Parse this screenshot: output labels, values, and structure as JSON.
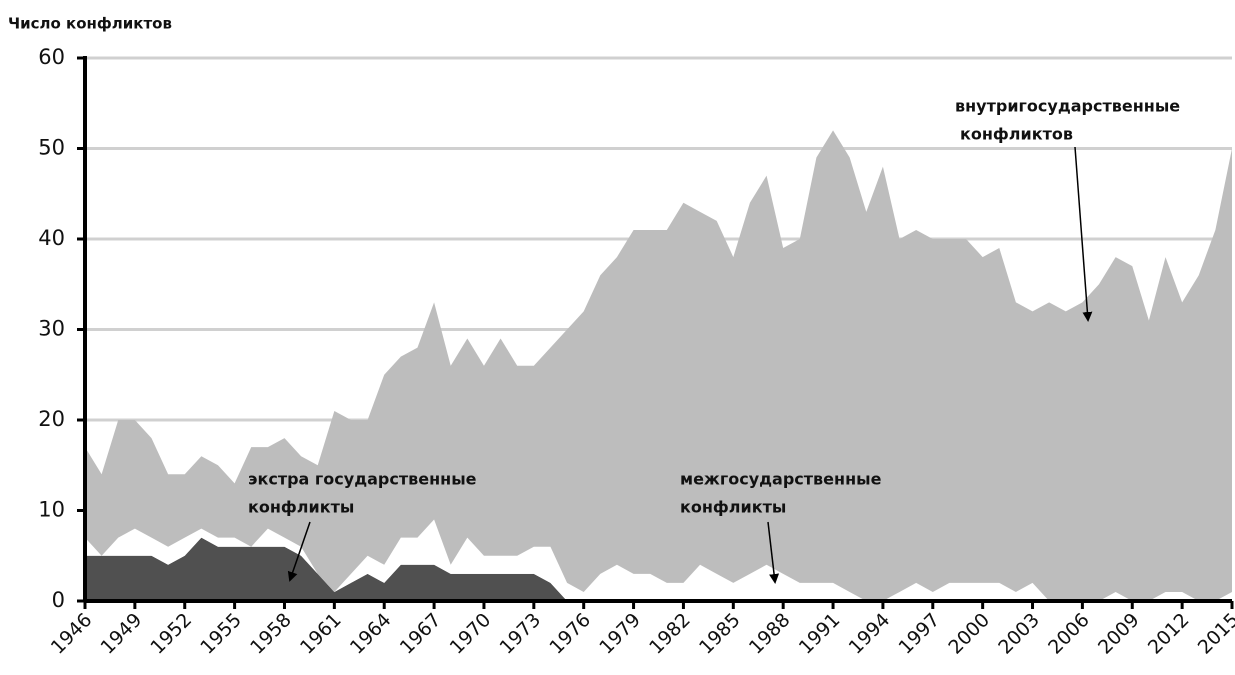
{
  "chart_data": {
    "type": "stacked_area",
    "y_label": "Число конфликтов",
    "x": [
      1946,
      1947,
      1948,
      1949,
      1950,
      1951,
      1952,
      1953,
      1954,
      1955,
      1956,
      1957,
      1958,
      1959,
      1960,
      1961,
      1962,
      1963,
      1964,
      1965,
      1966,
      1967,
      1968,
      1969,
      1970,
      1971,
      1972,
      1973,
      1974,
      1975,
      1976,
      1977,
      1978,
      1979,
      1980,
      1981,
      1982,
      1983,
      1984,
      1985,
      1986,
      1987,
      1988,
      1989,
      1990,
      1991,
      1992,
      1993,
      1994,
      1995,
      1996,
      1997,
      1998,
      1999,
      2000,
      2001,
      2002,
      2003,
      2004,
      2005,
      2006,
      2007,
      2008,
      2009,
      2010,
      2011,
      2012,
      2013,
      2014,
      2015
    ],
    "series": [
      {
        "color": "#505050",
        "values": [
          5,
          5,
          5,
          5,
          5,
          4,
          5,
          7,
          6,
          6,
          6,
          6,
          6,
          5,
          3,
          1,
          2,
          3,
          2,
          4,
          4,
          4,
          3,
          3,
          3,
          3,
          3,
          3,
          2,
          0,
          0,
          0,
          0,
          0,
          0,
          0,
          0,
          0,
          0,
          0,
          0,
          0,
          0,
          0,
          0,
          0,
          0,
          0,
          0,
          0,
          0,
          0,
          0,
          0,
          0,
          0,
          0,
          0,
          0,
          0,
          0,
          0,
          0,
          0,
          0,
          0,
          0,
          0,
          0,
          0
        ]
      },
      {
        "color": "#ffffff",
        "values": [
          2,
          0,
          2,
          3,
          2,
          2,
          2,
          1,
          1,
          1,
          0,
          2,
          1,
          1,
          0,
          0,
          1,
          2,
          2,
          3,
          3,
          5,
          1,
          4,
          2,
          2,
          2,
          3,
          4,
          2,
          1,
          3,
          4,
          3,
          3,
          2,
          2,
          4,
          3,
          2,
          3,
          4,
          3,
          2,
          2,
          2,
          1,
          0,
          0,
          1,
          2,
          1,
          2,
          2,
          2,
          2,
          1,
          2,
          0,
          0,
          0,
          0,
          1,
          0,
          0,
          1,
          1,
          0,
          0,
          1
        ]
      },
      {
        "color": "#bdbdbd",
        "values": [
          10,
          9,
          13,
          12,
          11,
          8,
          7,
          8,
          8,
          6,
          11,
          9,
          11,
          10,
          12,
          20,
          17,
          15,
          21,
          20,
          21,
          24,
          22,
          22,
          21,
          24,
          21,
          20,
          22,
          28,
          31,
          33,
          34,
          38,
          38,
          39,
          42,
          39,
          39,
          36,
          41,
          43,
          36,
          38,
          47,
          50,
          48,
          43,
          48,
          39,
          39,
          39,
          38,
          38,
          36,
          37,
          32,
          30,
          33,
          32,
          33,
          35,
          37,
          37,
          31,
          37,
          32,
          36,
          41,
          49
        ]
      }
    ],
    "xlim": [
      1946,
      2015
    ],
    "xticks": [
      1946,
      1949,
      1952,
      1955,
      1958,
      1961,
      1964,
      1967,
      1970,
      1973,
      1976,
      1979,
      1982,
      1985,
      1988,
      1991,
      1994,
      1997,
      2000,
      2003,
      2006,
      2009,
      2012,
      2015
    ],
    "ylim": [
      0,
      60
    ],
    "yticks": [
      0,
      10,
      20,
      30,
      40,
      50,
      60
    ],
    "grid": true,
    "annotations": [
      {
        "lines": [
          "экстра государственные",
          "конфликты"
        ]
      },
      {
        "lines": [
          "межгосударственные",
          "конфликты"
        ]
      },
      {
        "lines": [
          "внутригосударственные",
          "конфликтов"
        ]
      }
    ]
  }
}
